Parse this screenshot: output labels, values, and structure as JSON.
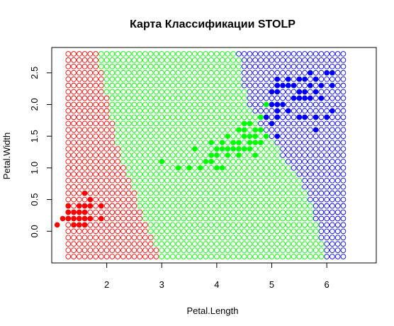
{
  "chart_data": {
    "type": "scatter",
    "title": "Карта Классификации STOLP",
    "xlabel": "Petal.Length",
    "ylabel": "Petal.Width",
    "xlim": [
      1.0,
      6.9
    ],
    "ylim": [
      -0.5,
      2.9
    ],
    "x_ticks": [
      2,
      3,
      4,
      5,
      6
    ],
    "y_ticks": [
      0.0,
      0.5,
      1.0,
      1.5,
      2.0,
      2.5
    ],
    "x_tick_labels": [
      "2",
      "3",
      "4",
      "5",
      "6"
    ],
    "y_tick_labels": [
      "0.0",
      "0.5",
      "1.0",
      "1.5",
      "2.0",
      "2.5"
    ],
    "grid": false,
    "legend": "none",
    "classes": [
      {
        "key": "setosa",
        "color": "#ff0000"
      },
      {
        "key": "versicolor",
        "color": "#00ff00"
      },
      {
        "key": "virginica",
        "color": "#0000ff"
      }
    ],
    "map_grid": {
      "x_start": 1.3,
      "x_end": 6.3,
      "x_step": 0.1,
      "y_start": -0.4,
      "y_end": 2.8,
      "y_step": 0.1,
      "marker": "open-circle",
      "boundaries": [
        {
          "between": [
            "setosa",
            "versicolor"
          ],
          "polyline": [
            [
              1.85,
              2.8
            ],
            [
              2.25,
              1.2
            ],
            [
              2.95,
              -0.4
            ]
          ]
        },
        {
          "between": [
            "versicolor",
            "virginica"
          ],
          "polyline": [
            [
              4.4,
              2.8
            ],
            [
              4.55,
              2.0
            ],
            [
              5.6,
              0.7
            ],
            [
              6.0,
              -0.4
            ]
          ]
        }
      ]
    },
    "series": [
      {
        "class": "setosa",
        "marker": "filled-circle",
        "points": [
          [
            1.3,
            0.2
          ],
          [
            1.4,
            0.2
          ],
          [
            1.5,
            0.2
          ],
          [
            1.6,
            0.2
          ],
          [
            1.7,
            0.2
          ],
          [
            1.9,
            0.2
          ],
          [
            1.3,
            0.3
          ],
          [
            1.4,
            0.3
          ],
          [
            1.5,
            0.3
          ],
          [
            1.6,
            0.3
          ],
          [
            1.7,
            0.4
          ],
          [
            1.9,
            0.4
          ],
          [
            1.3,
            0.4
          ],
          [
            1.4,
            0.1
          ],
          [
            1.5,
            0.1
          ],
          [
            1.6,
            0.4
          ],
          [
            1.7,
            0.5
          ],
          [
            1.5,
            0.4
          ],
          [
            1.4,
            0.3
          ],
          [
            1.6,
            0.6
          ],
          [
            1.5,
            0.3
          ],
          [
            1.2,
            0.2
          ],
          [
            1.1,
            0.1
          ],
          [
            1.6,
            0.1
          ]
        ]
      },
      {
        "class": "versicolor",
        "marker": "filled-circle",
        "points": [
          [
            3.0,
            1.1
          ],
          [
            3.3,
            1.0
          ],
          [
            3.5,
            1.0
          ],
          [
            3.6,
            1.3
          ],
          [
            3.7,
            1.0
          ],
          [
            3.8,
            1.1
          ],
          [
            3.9,
            1.1
          ],
          [
            3.9,
            1.2
          ],
          [
            3.9,
            1.4
          ],
          [
            4.0,
            1.0
          ],
          [
            4.0,
            1.2
          ],
          [
            4.0,
            1.3
          ],
          [
            4.1,
            1.0
          ],
          [
            4.1,
            1.3
          ],
          [
            4.2,
            1.2
          ],
          [
            4.2,
            1.3
          ],
          [
            4.2,
            1.5
          ],
          [
            4.3,
            1.3
          ],
          [
            4.4,
            1.2
          ],
          [
            4.4,
            1.3
          ],
          [
            4.4,
            1.4
          ],
          [
            4.5,
            1.3
          ],
          [
            4.5,
            1.5
          ],
          [
            4.6,
            1.3
          ],
          [
            4.6,
            1.4
          ],
          [
            4.6,
            1.5
          ],
          [
            4.7,
            1.2
          ],
          [
            4.7,
            1.4
          ],
          [
            4.7,
            1.5
          ],
          [
            4.8,
            1.4
          ],
          [
            4.8,
            1.8
          ],
          [
            4.9,
            1.5
          ],
          [
            4.5,
            1.7
          ],
          [
            4.7,
            1.6
          ],
          [
            4.3,
            1.4
          ],
          [
            4.8,
            1.6
          ],
          [
            4.9,
            2.0
          ],
          [
            4.4,
            1.6
          ],
          [
            4.1,
            1.4
          ],
          [
            4.5,
            1.6
          ],
          [
            4.6,
            1.7
          ]
        ]
      },
      {
        "class": "virginica",
        "marker": "filled-circle",
        "points": [
          [
            4.9,
            1.8
          ],
          [
            5.0,
            1.7
          ],
          [
            5.0,
            2.0
          ],
          [
            5.0,
            2.2
          ],
          [
            5.1,
            1.5
          ],
          [
            5.1,
            1.8
          ],
          [
            5.1,
            1.9
          ],
          [
            5.1,
            2.0
          ],
          [
            5.1,
            2.3
          ],
          [
            5.1,
            2.4
          ],
          [
            5.2,
            2.0
          ],
          [
            5.2,
            2.3
          ],
          [
            5.3,
            1.9
          ],
          [
            5.3,
            2.3
          ],
          [
            5.4,
            2.1
          ],
          [
            5.4,
            2.3
          ],
          [
            5.5,
            1.8
          ],
          [
            5.5,
            2.1
          ],
          [
            5.6,
            1.8
          ],
          [
            5.6,
            2.1
          ],
          [
            5.6,
            2.2
          ],
          [
            5.6,
            2.4
          ],
          [
            5.7,
            2.1
          ],
          [
            5.7,
            2.3
          ],
          [
            5.7,
            2.5
          ],
          [
            5.8,
            1.6
          ],
          [
            5.8,
            1.8
          ],
          [
            5.8,
            2.2
          ],
          [
            5.9,
            2.3
          ],
          [
            6.0,
            1.8
          ],
          [
            6.0,
            2.5
          ],
          [
            6.1,
            1.9
          ],
          [
            6.1,
            2.3
          ],
          [
            6.1,
            2.5
          ],
          [
            5.5,
            2.4
          ],
          [
            5.8,
            2.4
          ],
          [
            5.3,
            2.4
          ],
          [
            5.1,
            2.2
          ],
          [
            5.5,
            2.2
          ],
          [
            5.9,
            2.1
          ]
        ]
      }
    ]
  }
}
